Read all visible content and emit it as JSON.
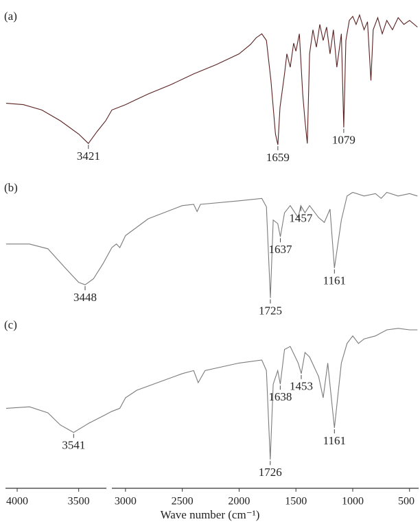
{
  "chart_data": {
    "type": "line",
    "xlabel": "Wave number (cm⁻¹)",
    "x_segments": [
      {
        "xlim": [
          4095,
          3275
        ],
        "xticks": [
          4000,
          3500
        ]
      },
      {
        "xlim": [
          3120,
          420
        ],
        "xticks": [
          3000,
          2500,
          2000,
          1500,
          1000,
          500
        ]
      }
    ],
    "ylim": [
      0,
      100
    ],
    "series": [
      {
        "name": "(a)",
        "color": "#5a2020",
        "x": [
          4090,
          3950,
          3800,
          3650,
          3500,
          3421,
          3350,
          3280,
          3120,
          3000,
          2900,
          2800,
          2600,
          2400,
          2200,
          2000,
          1900,
          1850,
          1800,
          1760,
          1720,
          1680,
          1659,
          1640,
          1600,
          1580,
          1550,
          1520,
          1500,
          1470,
          1440,
          1420,
          1400,
          1380,
          1350,
          1320,
          1290,
          1260,
          1230,
          1200,
          1170,
          1140,
          1100,
          1079,
          1060,
          1030,
          1000,
          970,
          940,
          900,
          870,
          840,
          820,
          780,
          740,
          700,
          650,
          600,
          550,
          500,
          430
        ],
        "values": [
          33,
          32,
          28,
          20,
          10,
          3,
          12,
          20,
          28,
          32,
          36,
          40,
          47,
          55,
          62,
          70,
          77,
          82,
          85,
          80,
          50,
          10,
          2,
          30,
          55,
          70,
          60,
          78,
          72,
          85,
          40,
          20,
          3,
          70,
          88,
          75,
          92,
          80,
          90,
          70,
          88,
          60,
          85,
          15,
          80,
          95,
          98,
          92,
          99,
          88,
          94,
          50,
          88,
          97,
          85,
          95,
          88,
          97,
          92,
          95,
          90
        ],
        "peak_labels": [
          3421,
          1659,
          1079
        ]
      },
      {
        "name": "(b)",
        "color": "#7a7a7a",
        "x": [
          4090,
          3900,
          3750,
          3600,
          3500,
          3448,
          3380,
          3300,
          3120,
          3080,
          3050,
          3000,
          2800,
          2500,
          2400,
          2370,
          2340,
          2000,
          1800,
          1760,
          1725,
          1700,
          1660,
          1637,
          1600,
          1550,
          1480,
          1457,
          1420,
          1380,
          1300,
          1250,
          1200,
          1161,
          1100,
          1050,
          1000,
          900,
          800,
          750,
          700,
          600,
          500,
          430
        ],
        "values": [
          51,
          51,
          47,
          30,
          19,
          17,
          22,
          35,
          48,
          51,
          48,
          58,
          72,
          83,
          84,
          78,
          84,
          87,
          89,
          82,
          6,
          71,
          68,
          57,
          77,
          83,
          73,
          83,
          77,
          83,
          73,
          69,
          80,
          31,
          71,
          91,
          94,
          91,
          93,
          89,
          94,
          91,
          93,
          91
        ],
        "peak_labels": [
          3448,
          1725,
          1637,
          1457,
          1161
        ]
      },
      {
        "name": "(c)",
        "color": "#7a7a7a",
        "x": [
          4090,
          3900,
          3750,
          3650,
          3541,
          3420,
          3300,
          3120,
          3050,
          3000,
          2900,
          2500,
          2400,
          2360,
          2300,
          2000,
          1800,
          1760,
          1726,
          1700,
          1660,
          1638,
          1600,
          1550,
          1480,
          1453,
          1420,
          1380,
          1300,
          1260,
          1220,
          1161,
          1100,
          1050,
          1000,
          950,
          900,
          800,
          700,
          600,
          500,
          430
        ],
        "values": [
          43,
          44,
          40,
          32,
          27,
          33,
          38,
          41,
          43,
          50,
          55,
          66,
          68,
          60,
          68,
          73,
          75,
          68,
          9,
          59,
          68,
          59,
          82,
          84,
          73,
          66,
          80,
          77,
          64,
          50,
          73,
          30,
          73,
          86,
          91,
          86,
          89,
          91,
          95,
          96,
          95,
          95
        ],
        "peak_labels": [
          3541,
          1726,
          1638,
          1453,
          1161
        ]
      }
    ]
  }
}
